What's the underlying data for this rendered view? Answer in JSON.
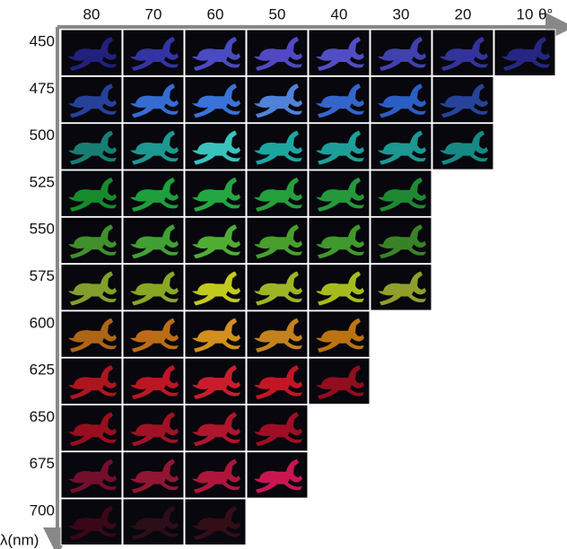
{
  "axes": {
    "x_label": "θ°",
    "y_label": "λ(nm)"
  },
  "columns": [
    "80",
    "70",
    "60",
    "50",
    "40",
    "30",
    "20",
    "10"
  ],
  "rows": [
    {
      "label": "450",
      "cells": [
        "#26238a",
        "#3a38b4",
        "#5252d6",
        "#5a50d8",
        "#5a56d8",
        "#4848c0",
        "#3838a8",
        "#2a2a90"
      ]
    },
    {
      "label": "475",
      "cells": [
        "#2a48a8",
        "#3a78e8",
        "#3f80f0",
        "#5a90f0",
        "#3a70e0",
        "#3068d8",
        "#2a4aa8"
      ]
    },
    {
      "label": "500",
      "cells": [
        "#1a8c80",
        "#20a8a0",
        "#40d8d0",
        "#20b8b0",
        "#20b0a8",
        "#20a8a0",
        "#1a9890"
      ]
    },
    {
      "label": "525",
      "cells": [
        "#1a9a30",
        "#20b040",
        "#28b848",
        "#28b040",
        "#28a840",
        "#209838"
      ]
    },
    {
      "label": "550",
      "cells": [
        "#48a030",
        "#48b038",
        "#58c038",
        "#50b030",
        "#48a830",
        "#40902a"
      ]
    },
    {
      "label": "575",
      "cells": [
        "#90b030",
        "#98b828",
        "#d8e020",
        "#b0c828",
        "#b8d020",
        "#a0b030"
      ]
    },
    {
      "label": "600",
      "cells": [
        "#c07018",
        "#d07818",
        "#e8a020",
        "#d89020",
        "#d08010"
      ]
    },
    {
      "label": "625",
      "cells": [
        "#c01820",
        "#d01828",
        "#e02030",
        "#d81828",
        "#a01020"
      ]
    },
    {
      "label": "650",
      "cells": [
        "#a81020",
        "#b01428",
        "#c01830",
        "#b01028"
      ]
    },
    {
      "label": "675",
      "cells": [
        "#801030",
        "#a01838",
        "#c01840",
        "#e01858"
      ]
    },
    {
      "label": "700",
      "cells": [
        "#400818",
        "#301018",
        "#381018"
      ]
    }
  ]
}
